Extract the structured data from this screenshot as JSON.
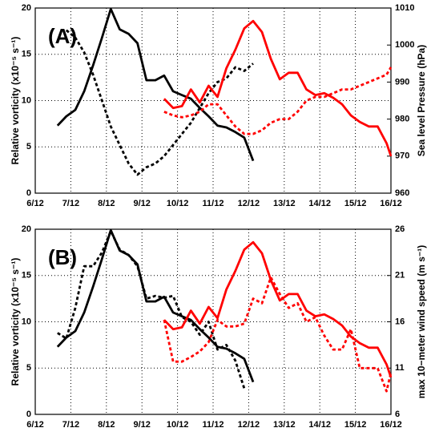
{
  "chart_data": [
    {
      "type": "line",
      "annotation": "(A)",
      "ylabel": "Relative vorticity (x10⁻⁵ s⁻¹)",
      "y2label": "Sea level Pressure (hPa)",
      "xlim": [
        6,
        16
      ],
      "xticks": [
        {
          "value": 6,
          "label": "6/12"
        },
        {
          "value": 7,
          "label": "7/12"
        },
        {
          "value": 8,
          "label": "8/12"
        },
        {
          "value": 9,
          "label": "9/12"
        },
        {
          "value": 10,
          "label": "10/12"
        },
        {
          "value": 11,
          "label": "11/12"
        },
        {
          "value": 12,
          "label": "12/12"
        },
        {
          "value": 13,
          "label": "13/12"
        },
        {
          "value": 14,
          "label": "14/12"
        },
        {
          "value": 15,
          "label": "15/12"
        },
        {
          "value": 16,
          "label": "16/12"
        }
      ],
      "ylim": [
        0,
        20
      ],
      "yticks": [
        0,
        5,
        10,
        15,
        20
      ],
      "y2lim": [
        960,
        1010
      ],
      "y2ticks": [
        960,
        970,
        980,
        990,
        1000,
        1010
      ],
      "grid": true,
      "series": [
        {
          "color": "#000000",
          "dashed": false,
          "x": [
            6.625,
            6.875,
            7.125,
            7.375,
            7.625,
            7.875,
            8.125,
            8.375,
            8.625,
            8.875,
            9.125,
            9.375,
            9.625,
            9.875,
            10.125,
            10.375,
            10.625,
            10.875,
            11.125,
            11.375,
            11.625,
            11.875,
            12.125
          ],
          "values": [
            7.3,
            8.3,
            9.0,
            11.0,
            13.8,
            16.8,
            19.9,
            17.7,
            17.2,
            16.2,
            12.2,
            12.2,
            12.7,
            11.0,
            10.6,
            10.2,
            9.2,
            8.3,
            7.3,
            7.1,
            6.6,
            6.0,
            3.5
          ]
        },
        {
          "color": "#000000",
          "dashed": true,
          "axis": "y2",
          "x": [
            6.875,
            7.125,
            7.375,
            7.625,
            7.875,
            8.125,
            8.375,
            8.625,
            8.875,
            9.125,
            9.375,
            9.625,
            9.875,
            10.125,
            10.375,
            10.625,
            10.875,
            11.125,
            11.375,
            11.625,
            11.875,
            12.125
          ],
          "values": [
            1004,
            1002,
            998,
            992,
            985,
            978,
            973,
            968,
            965,
            967,
            968,
            970,
            973,
            976,
            979,
            983,
            987,
            990,
            991,
            994,
            993,
            995
          ]
        },
        {
          "color": "#ff0000",
          "dashed": false,
          "x": [
            9.625,
            9.875,
            10.125,
            10.375,
            10.625,
            10.875,
            11.125,
            11.375,
            11.625,
            11.875,
            12.125,
            12.375,
            12.625,
            12.875,
            13.125,
            13.375,
            13.625,
            13.875,
            14.125,
            14.375,
            14.625,
            14.875,
            15.125,
            15.375,
            15.625,
            15.875,
            16.0
          ],
          "values": [
            10.2,
            9.2,
            9.4,
            11.2,
            9.8,
            11.6,
            10.4,
            13.5,
            15.5,
            17.8,
            18.6,
            17.4,
            14.5,
            12.3,
            13.0,
            13.0,
            11.2,
            10.6,
            10.8,
            10.3,
            9.6,
            8.4,
            7.7,
            7.2,
            7.2,
            5.4,
            4.0
          ]
        },
        {
          "color": "#ff0000",
          "dashed": true,
          "axis": "y2",
          "x": [
            9.625,
            9.875,
            10.125,
            10.375,
            10.625,
            10.875,
            11.125,
            11.375,
            11.625,
            11.875,
            12.125,
            12.375,
            12.625,
            12.875,
            13.125,
            13.375,
            13.625,
            13.875,
            14.125,
            14.375,
            14.625,
            14.875,
            15.125,
            15.375,
            15.625,
            15.875,
            16.0
          ],
          "values": [
            982,
            981,
            980.5,
            981,
            982,
            984,
            984,
            981,
            978,
            976,
            976,
            977,
            979,
            980,
            980,
            982,
            985,
            986,
            986,
            987,
            988,
            988,
            989,
            990,
            991,
            992,
            994
          ]
        }
      ]
    },
    {
      "type": "line",
      "annotation": "(B)",
      "ylabel": "Relative vorticity (x10⁻⁵ s⁻¹)",
      "y2label": "max 10−meter wind speed (m s⁻¹)",
      "xlim": [
        6,
        16
      ],
      "xticks": [
        {
          "value": 6,
          "label": "6/12"
        },
        {
          "value": 7,
          "label": "7/12"
        },
        {
          "value": 8,
          "label": "8/12"
        },
        {
          "value": 9,
          "label": "9/12"
        },
        {
          "value": 10,
          "label": "10/12"
        },
        {
          "value": 11,
          "label": "11/12"
        },
        {
          "value": 12,
          "label": "12/12"
        },
        {
          "value": 13,
          "label": "13/12"
        },
        {
          "value": 14,
          "label": "14/12"
        },
        {
          "value": 15,
          "label": "15/12"
        },
        {
          "value": 16,
          "label": "16/12"
        }
      ],
      "ylim": [
        0,
        20
      ],
      "yticks": [
        0,
        5,
        10,
        15,
        20
      ],
      "y2lim": [
        6,
        26
      ],
      "y2ticks": [
        6,
        11,
        16,
        21,
        26
      ],
      "grid": true,
      "series": [
        {
          "color": "#000000",
          "dashed": false,
          "x": [
            6.625,
            6.875,
            7.125,
            7.375,
            7.625,
            7.875,
            8.125,
            8.375,
            8.625,
            8.875,
            9.125,
            9.375,
            9.625,
            9.875,
            10.125,
            10.375,
            10.625,
            10.875,
            11.125,
            11.375,
            11.625,
            11.875,
            12.125
          ],
          "values": [
            7.3,
            8.3,
            9.0,
            11.0,
            13.8,
            16.8,
            19.9,
            17.7,
            17.2,
            16.2,
            12.2,
            12.2,
            12.7,
            11.0,
            10.6,
            10.2,
            9.2,
            8.3,
            7.3,
            7.1,
            6.6,
            6.0,
            3.5
          ]
        },
        {
          "color": "#000000",
          "dashed": true,
          "axis": "y2",
          "x": [
            6.625,
            6.875,
            7.125,
            7.375,
            7.625,
            7.875,
            8.125,
            8.375,
            8.625,
            8.875,
            9.125,
            9.375,
            9.625,
            9.875,
            10.125,
            10.375,
            10.625,
            10.875,
            11.125,
            11.375,
            11.625,
            11.875
          ],
          "values": [
            14.8,
            14.2,
            17.5,
            22.0,
            22.0,
            23.5,
            25.8,
            23.8,
            23.2,
            22.0,
            18.5,
            18.8,
            18.6,
            18.8,
            16.5,
            16.0,
            14.6,
            16.0,
            13.0,
            13.5,
            11.8,
            8.8
          ]
        },
        {
          "color": "#ff0000",
          "dashed": false,
          "x": [
            9.625,
            9.875,
            10.125,
            10.375,
            10.625,
            10.875,
            11.125,
            11.375,
            11.625,
            11.875,
            12.125,
            12.375,
            12.625,
            12.875,
            13.125,
            13.375,
            13.625,
            13.875,
            14.125,
            14.375,
            14.625,
            14.875,
            15.125,
            15.375,
            15.625,
            15.875,
            16.0
          ],
          "values": [
            10.2,
            9.2,
            9.4,
            11.2,
            9.8,
            11.6,
            10.4,
            13.5,
            15.5,
            17.8,
            18.6,
            17.4,
            14.5,
            12.3,
            13.0,
            13.0,
            11.2,
            10.6,
            10.8,
            10.3,
            9.6,
            8.4,
            7.7,
            7.2,
            7.2,
            5.4,
            4.0
          ]
        },
        {
          "color": "#ff0000",
          "dashed": true,
          "axis": "y2",
          "x": [
            9.625,
            9.875,
            10.125,
            10.375,
            10.625,
            10.875,
            11.125,
            11.375,
            11.625,
            11.875,
            12.125,
            12.375,
            12.625,
            12.875,
            13.125,
            13.375,
            13.625,
            13.875,
            14.125,
            14.375,
            14.625,
            14.875,
            15.125,
            15.375,
            15.625,
            15.875,
            16.0
          ],
          "values": [
            16.2,
            11.7,
            11.7,
            12.2,
            12.8,
            13.8,
            16.2,
            15.5,
            15.5,
            15.8,
            18.5,
            18.0,
            20.8,
            19.0,
            17.5,
            18.0,
            16.0,
            16.5,
            14.5,
            13.0,
            13.0,
            15.2,
            11.0,
            11.0,
            11.0,
            8.5,
            10.5
          ]
        }
      ]
    }
  ]
}
